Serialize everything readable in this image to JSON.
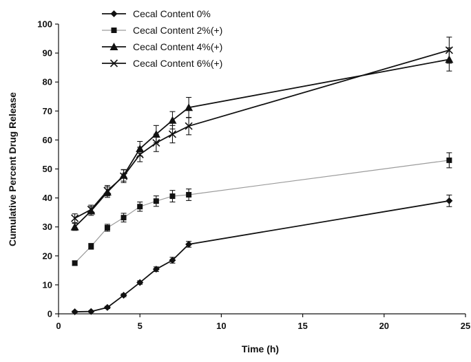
{
  "chart_data": {
    "type": "line",
    "title": "",
    "xlabel": "Time (h)",
    "ylabel": "Cumulative Percent Drug Release",
    "xlim": [
      0,
      25
    ],
    "ylim": [
      0,
      100
    ],
    "xticks": [
      0,
      5,
      10,
      15,
      20,
      25
    ],
    "yticks": [
      0,
      10,
      20,
      30,
      40,
      50,
      60,
      70,
      80,
      90,
      100
    ],
    "grid": false,
    "legend_position": "top-left",
    "x": [
      1,
      2,
      3,
      4,
      5,
      6,
      7,
      8,
      24
    ],
    "series": [
      {
        "name": "Cecal Content 0%",
        "marker": "diamond",
        "color": "#111111",
        "line_color": "#111111",
        "values": [
          0.7,
          0.8,
          2.2,
          6.4,
          10.8,
          15.4,
          18.5,
          24.0,
          39.0
        ],
        "errors": [
          0.3,
          0.3,
          0.4,
          0.5,
          0.6,
          0.8,
          1.0,
          1.0,
          2.0
        ]
      },
      {
        "name": "Cecal Content 2%(+)",
        "marker": "square",
        "color": "#111111",
        "line_color": "#9a9a9a",
        "values": [
          17.5,
          23.3,
          29.7,
          33.2,
          37.0,
          38.9,
          40.6,
          41.1,
          53.0
        ],
        "errors": [
          0.8,
          1.0,
          1.2,
          1.5,
          1.6,
          1.8,
          2.0,
          2.0,
          2.6
        ]
      },
      {
        "name": "Cecal Content 4%(+)",
        "marker": "triangle",
        "color": "#111111",
        "line_color": "#111111",
        "values": [
          30.0,
          35.5,
          42.0,
          47.8,
          57.0,
          62.0,
          66.8,
          71.2,
          87.8
        ],
        "errors": [
          1.2,
          1.5,
          1.8,
          2.0,
          2.5,
          3.0,
          3.0,
          3.5,
          4.0
        ]
      },
      {
        "name": "Cecal Content 6%(+)",
        "marker": "x",
        "color": "#111111",
        "line_color": "#111111",
        "values": [
          33.0,
          36.0,
          42.5,
          47.5,
          55.0,
          59.0,
          62.0,
          64.8,
          91.0
        ],
        "errors": [
          1.5,
          1.5,
          1.8,
          2.2,
          2.5,
          3.0,
          3.0,
          3.0,
          4.5
        ]
      }
    ]
  }
}
